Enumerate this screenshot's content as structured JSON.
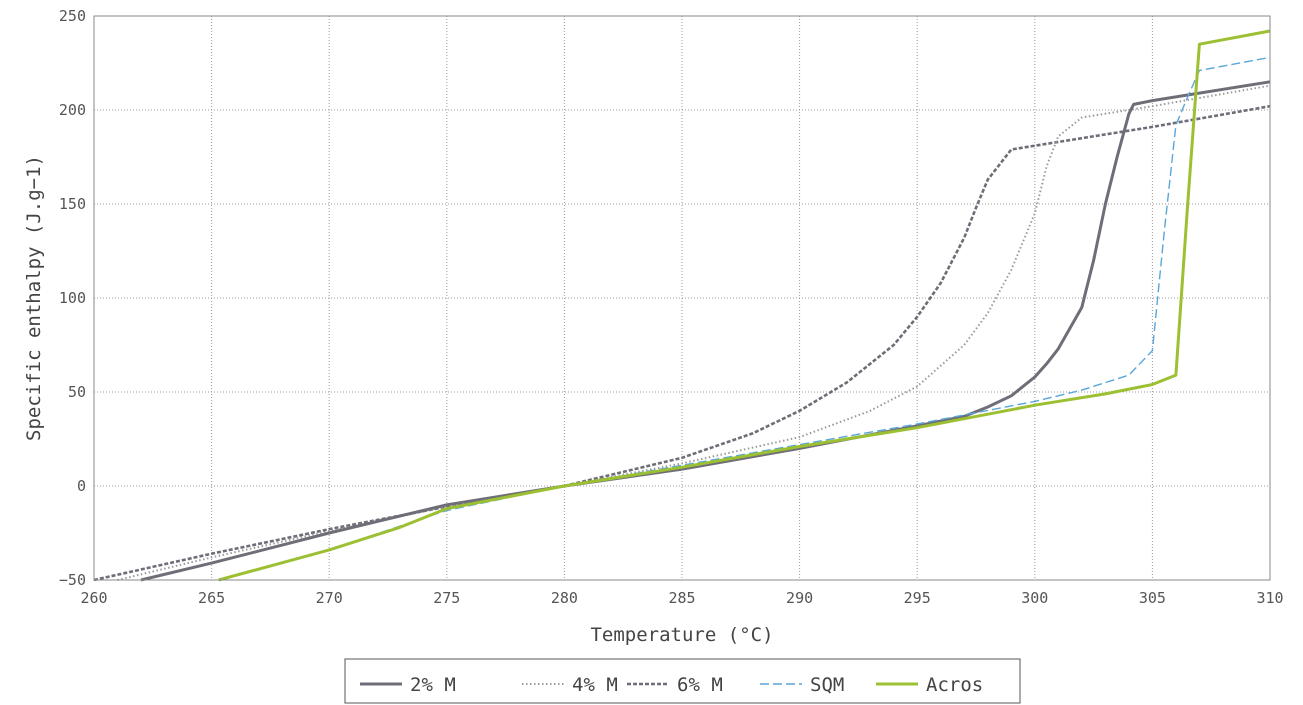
{
  "chart_data": {
    "type": "line",
    "title": "",
    "xlabel": "Temperature (°C)",
    "ylabel": "Specific enthalpy (J.g−1)",
    "xlim": [
      260,
      310
    ],
    "ylim": [
      -50,
      250
    ],
    "xticks": [
      "260",
      "265",
      "270",
      "275",
      "280",
      "285",
      "290",
      "295",
      "300",
      "305",
      "310"
    ],
    "yticks": [
      "−50",
      "0",
      "50",
      "100",
      "150",
      "200",
      "250"
    ],
    "grid": true,
    "legend_position": "bottom-center",
    "series": [
      {
        "name": "2% M",
        "color": "#6e6e78",
        "style": "solid",
        "x": [
          262,
          265,
          270,
          275,
          280,
          285,
          290,
          295,
          297,
          298,
          299,
          300,
          300.5,
          301,
          302,
          302.5,
          303,
          303.5,
          304,
          304.2,
          305,
          310
        ],
        "y": [
          -50,
          -41,
          -25,
          -10,
          0,
          9,
          20,
          32,
          37,
          42,
          48,
          58,
          65,
          73,
          95,
          120,
          150,
          175,
          198,
          203,
          205,
          215
        ]
      },
      {
        "name": "4% M",
        "color": "#9a9a9a",
        "style": "dotted",
        "x": [
          261,
          265,
          270,
          275,
          280,
          285,
          290,
          293,
          295,
          297,
          298,
          299,
          300,
          300.5,
          301,
          302,
          305,
          310
        ],
        "y": [
          -50,
          -38,
          -24,
          -11,
          0,
          12,
          26,
          40,
          53,
          75,
          92,
          115,
          145,
          170,
          186,
          196,
          202,
          213
        ]
      },
      {
        "name": "6% M",
        "color": "#6e6e78",
        "style": "dashed",
        "x": [
          260,
          265,
          270,
          275,
          280,
          285,
          288,
          290,
          292,
          294,
          295,
          296,
          297,
          297.5,
          298,
          299,
          300,
          305,
          310
        ],
        "y": [
          -50,
          -36,
          -23,
          -11,
          0,
          15,
          28,
          40,
          55,
          75,
          90,
          108,
          132,
          148,
          163,
          179,
          181,
          191,
          202
        ]
      },
      {
        "name": "SQM",
        "color": "#5aa6d8",
        "style": "dashed",
        "x": [
          265.3,
          270,
          275,
          280,
          285,
          290,
          295,
          300,
          302,
          304,
          305,
          305.5,
          306,
          306.5,
          307,
          310
        ],
        "y": [
          -50,
          -34,
          -13,
          0,
          11,
          22,
          33,
          45,
          51,
          59,
          72,
          135,
          192,
          207,
          221,
          228
        ]
      },
      {
        "name": "Acros",
        "color": "#9dc033",
        "style": "solid",
        "x": [
          265.3,
          270,
          273,
          275,
          280,
          285,
          290,
          295,
          300,
          303,
          305,
          306,
          306.5,
          307,
          310
        ],
        "y": [
          -50,
          -34,
          -22,
          -12,
          0,
          10,
          21,
          31,
          43,
          49,
          54,
          59,
          150,
          235,
          242
        ]
      }
    ]
  }
}
